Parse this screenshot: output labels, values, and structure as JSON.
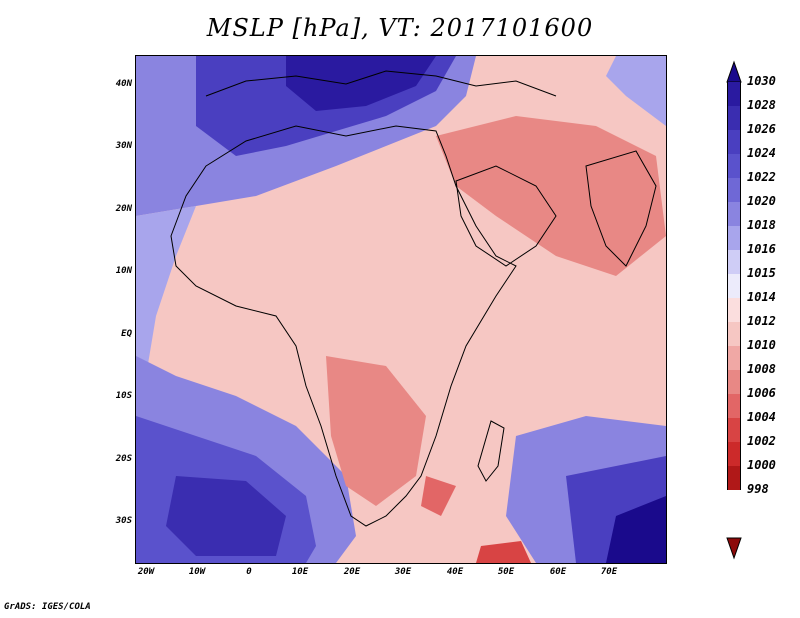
{
  "title": "MSLP [hPa], VT: 2017101600",
  "footer": "GrADS: IGES/COLA",
  "map": {
    "region": "Africa and Indian Ocean",
    "lat_range": [
      -36,
      45
    ],
    "lon_range": [
      -23,
      80
    ],
    "lat_labels": [
      "40N",
      "30N",
      "20N",
      "10N",
      "EQ",
      "10S",
      "20S",
      "30S"
    ],
    "lon_labels": [
      "20W",
      "10W",
      "0",
      "10E",
      "20E",
      "30E",
      "40E",
      "50E",
      "60E",
      "70E"
    ]
  },
  "colorbar": {
    "levels": [
      "1030",
      "1028",
      "1026",
      "1024",
      "1022",
      "1020",
      "1018",
      "1016",
      "1015",
      "1014",
      "1012",
      "1010",
      "1008",
      "1006",
      "1004",
      "1002",
      "1000",
      "998"
    ],
    "colors": [
      "#1a0a8c",
      "#2a1aa0",
      "#3a2db0",
      "#4a3fc0",
      "#5a52cc",
      "#6f68d6",
      "#8a84e0",
      "#a8a5ec",
      "#cfcdf6",
      "#ecebfb",
      "#fbdede",
      "#f6c7c3",
      "#f0a8a5",
      "#e88885",
      "#e26666",
      "#d84444",
      "#cc2a2a",
      "#b01818",
      "#8c0a0a"
    ]
  }
}
